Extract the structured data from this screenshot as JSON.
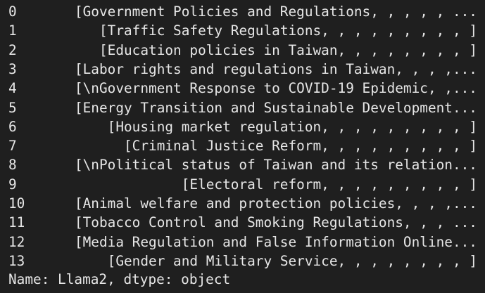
{
  "series": {
    "rows": [
      {
        "index": "0",
        "value": "[Government Policies and Regulations, , , , , ..."
      },
      {
        "index": "1",
        "value": "[Traffic Safety Regulations, , , , , , , , , ]"
      },
      {
        "index": "2",
        "value": "[Education policies in Taiwan, , , , , , , , ]"
      },
      {
        "index": "3",
        "value": "[Labor rights and regulations in Taiwan, , , ,..."
      },
      {
        "index": "4",
        "value": "[\\nGovernment Response to COVID-19 Epidemic, ,..."
      },
      {
        "index": "5",
        "value": "[Energy Transition and Sustainable Development..."
      },
      {
        "index": "6",
        "value": "[Housing market regulation, , , , , , , , , ]"
      },
      {
        "index": "7",
        "value": "[Criminal Justice Reform, , , , , , , , , ]"
      },
      {
        "index": "8",
        "value": "[\\nPolitical status of Taiwan and its relation..."
      },
      {
        "index": "9",
        "value": "[Electoral reform, , , , , , , , , ]"
      },
      {
        "index": "10",
        "value": "[Animal welfare and protection policies, , , ,..."
      },
      {
        "index": "11",
        "value": "[Tobacco Control and Smoking Regulations, , , ..."
      },
      {
        "index": "12",
        "value": "[Media Regulation and False Information Online..."
      },
      {
        "index": "13",
        "value": "[Gender and Military Service, , , , , , , , ]"
      }
    ],
    "footer": "Name: Llama2, dtype: object"
  },
  "colors": {
    "background": "#1f1f1f",
    "text": "#e6e6e6"
  }
}
